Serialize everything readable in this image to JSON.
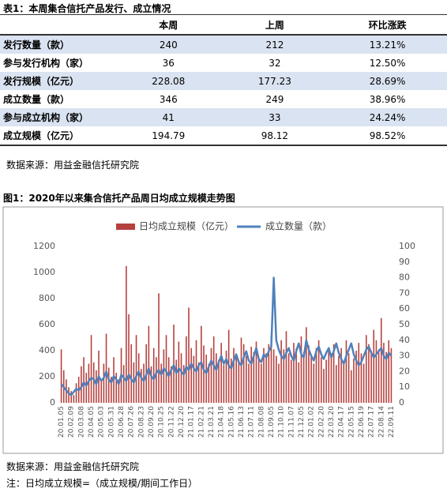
{
  "table": {
    "title": "表1：本周集合信托产品发行、成立情况",
    "columns": [
      "本周",
      "上周",
      "环比涨跌"
    ],
    "rows": [
      [
        "发行数量（款）",
        "240",
        "212",
        "13.21%"
      ],
      [
        "参与发行机构（家）",
        "36",
        "32",
        "12.50%"
      ],
      [
        "发行规模（亿元）",
        "228.08",
        "177.23",
        "28.69%"
      ],
      [
        "成立数量（款）",
        "346",
        "249",
        "38.96%"
      ],
      [
        "参与成立机构（家）",
        "41",
        "33",
        "24.24%"
      ],
      [
        "成立规模（亿元）",
        "194.79",
        "98.12",
        "98.52%"
      ]
    ],
    "source": "数据来源：用益金融信托研究院"
  },
  "chart_data": {
    "type": "bar_line",
    "title": "图1：2020年以来集合信托产品周日均成立规模走势图",
    "categories": [
      "20.01.05",
      null,
      null,
      null,
      "20.02.09",
      null,
      null,
      null,
      "20.03.08",
      null,
      null,
      null,
      "20.04.05",
      null,
      null,
      null,
      "20.05.03",
      null,
      null,
      null,
      "20.05.31",
      null,
      null,
      null,
      "20.06.28",
      null,
      null,
      null,
      "20.07.26",
      null,
      null,
      null,
      "20.08.23",
      null,
      null,
      null,
      "20.09.20",
      null,
      null,
      null,
      "20.10.25",
      null,
      null,
      null,
      "20.11.22",
      null,
      null,
      null,
      "20.12.20",
      null,
      null,
      null,
      "21.01.17",
      null,
      null,
      null,
      "21.02.21",
      null,
      null,
      null,
      "21.03.21",
      null,
      null,
      null,
      "21.04.18",
      null,
      null,
      null,
      "21.05.16",
      null,
      null,
      null,
      "21.06.13",
      null,
      null,
      null,
      "21.07.11",
      null,
      null,
      null,
      "21.08.08",
      null,
      null,
      null,
      "21.09.05",
      null,
      null,
      null,
      "21.10.10",
      null,
      null,
      null,
      "21.11.07",
      null,
      null,
      null,
      "21.12.05",
      null,
      null,
      null,
      "22.01.02",
      null,
      null,
      null,
      "22.02.20",
      null,
      null,
      null,
      "22.03.20",
      null,
      null,
      null,
      "22.04.17",
      null,
      null,
      null,
      "22.05.15",
      null,
      null,
      null,
      "22.06.19",
      null,
      null,
      null,
      "22.07.17",
      null,
      null,
      null,
      "22.08.14",
      null,
      null,
      null,
      "22.09.11"
    ],
    "series": [
      {
        "name": "日均成立规模（亿元）",
        "color": "#b5403e",
        "kind": "bar",
        "values": [
          410,
          250,
          180,
          120,
          90,
          60,
          150,
          200,
          280,
          350,
          230,
          300,
          520,
          310,
          250,
          400,
          180,
          300,
          530,
          270,
          200,
          350,
          230,
          180,
          420,
          290,
          1050,
          680,
          450,
          310,
          520,
          380,
          260,
          300,
          450,
          590,
          280,
          420,
          350,
          840,
          300,
          410,
          520,
          350,
          280,
          600,
          330,
          470,
          380,
          290,
          510,
          730,
          420,
          360,
          480,
          310,
          590,
          440,
          370,
          300,
          420,
          510,
          380,
          330,
          460,
          290,
          400,
          560,
          340,
          420,
          380,
          310,
          500,
          450,
          360,
          300,
          430,
          390,
          470,
          350,
          300,
          420,
          380,
          450,
          520,
          410,
          360,
          300,
          480,
          410,
          550,
          380,
          330,
          460,
          420,
          310,
          510,
          390,
          580,
          440,
          370,
          300,
          420,
          480,
          350,
          260,
          330,
          410,
          380,
          450,
          290,
          360,
          420,
          310,
          480,
          380,
          250,
          340,
          400,
          460,
          380,
          300,
          520,
          450,
          400,
          560,
          480,
          410,
          650,
          460,
          390,
          480,
          420
        ]
      },
      {
        "name": "成立数量（款）",
        "color": "#4f81bd",
        "kind": "line",
        "axis": "y2",
        "values": [
          12,
          10,
          8,
          6,
          5,
          7,
          9,
          8,
          10,
          13,
          11,
          14,
          16,
          15,
          12,
          17,
          14,
          16,
          20,
          15,
          13,
          17,
          15,
          12,
          18,
          16,
          14,
          18,
          15,
          13,
          17,
          20,
          16,
          14,
          18,
          22,
          17,
          15,
          19,
          21,
          18,
          22,
          20,
          17,
          21,
          24,
          19,
          22,
          20,
          18,
          23,
          21,
          25,
          22,
          20,
          24,
          26,
          21,
          19,
          23,
          27,
          24,
          21,
          26,
          30,
          25,
          28,
          24,
          22,
          27,
          31,
          26,
          24,
          29,
          33,
          27,
          25,
          30,
          35,
          28,
          26,
          31,
          29,
          33,
          36,
          80,
          40,
          34,
          30,
          28,
          32,
          35,
          30,
          27,
          33,
          38,
          31,
          29,
          40,
          34,
          30,
          27,
          33,
          36,
          31,
          28,
          32,
          35,
          29,
          33,
          38,
          32,
          28,
          25,
          30,
          34,
          38,
          31,
          27,
          24,
          26,
          30,
          34,
          36,
          32,
          29,
          31,
          33,
          35,
          30,
          28,
          32,
          30
        ]
      }
    ],
    "ylim": [
      0,
      1200
    ],
    "yticks": [
      0,
      200,
      400,
      600,
      800,
      1000,
      1200
    ],
    "y2lim": [
      0,
      100
    ],
    "y2ticks": [
      0,
      10,
      20,
      30,
      40,
      50,
      60,
      70,
      80,
      90,
      100
    ],
    "legend": "top"
  },
  "footer": {
    "source": "数据来源：用益金融信托研究院",
    "note": "注：日均成立规模=（成立规模/期间工作日）"
  }
}
